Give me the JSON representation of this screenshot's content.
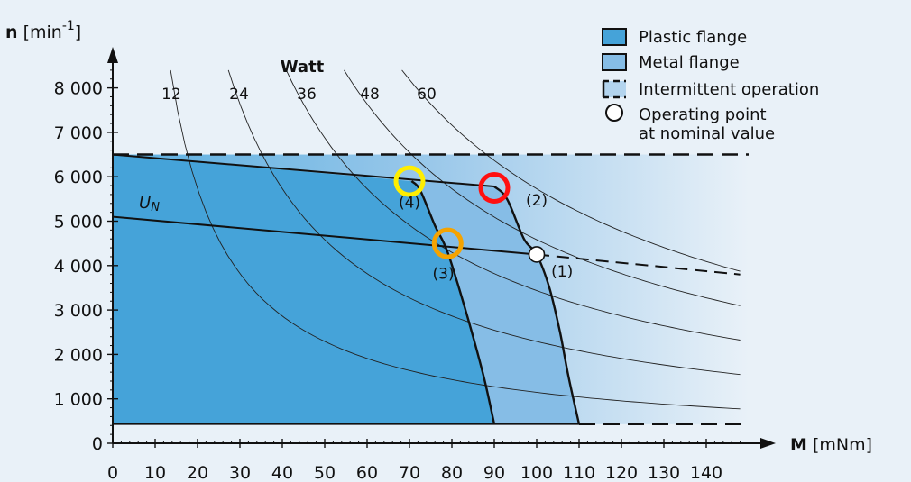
{
  "chart_data": {
    "type": "line",
    "x_axis": {
      "label_bold": "M",
      "label_rest": " [mNm]",
      "ticks": [
        0,
        10,
        20,
        30,
        40,
        50,
        60,
        70,
        80,
        90,
        100,
        110,
        120,
        130,
        140
      ],
      "range": [
        0,
        150
      ]
    },
    "y_axis": {
      "label_bold": "n",
      "label_rest": " [min",
      "label_sup": "-1",
      "label_close": "]",
      "ticks": [
        0,
        1000,
        2000,
        3000,
        4000,
        5000,
        6000,
        7000,
        8000
      ],
      "tick_labels": [
        "0",
        "1 000",
        "2 000",
        "3 000",
        "4 000",
        "5 000",
        "6 000",
        "7 000",
        "8 000"
      ],
      "range": [
        0,
        9000
      ]
    },
    "watt_heading": "Watt",
    "power_curves": [
      {
        "label": "12",
        "watts": 12
      },
      {
        "label": "24",
        "watts": 24
      },
      {
        "label": "36",
        "watts": 36
      },
      {
        "label": "48",
        "watts": 48
      },
      {
        "label": "60",
        "watts": 60
      }
    ],
    "speed_limit": 6500,
    "min_speed": 430,
    "plastic_region": [
      [
        0,
        6500
      ],
      [
        70.5,
        5900
      ],
      [
        72.5,
        5700
      ],
      [
        76,
        4900
      ],
      [
        79,
        4300
      ],
      [
        83.5,
        2900
      ],
      [
        87.5,
        1500
      ],
      [
        90,
        430
      ],
      [
        0,
        430
      ]
    ],
    "metal_region": [
      [
        70.5,
        5900
      ],
      [
        90,
        5780
      ],
      [
        93,
        5500
      ],
      [
        97,
        4600
      ],
      [
        100,
        4250
      ],
      [
        103,
        3500
      ],
      [
        105.5,
        2500
      ],
      [
        107.5,
        1500
      ],
      [
        110,
        430
      ],
      [
        90,
        430
      ],
      [
        87.5,
        1500
      ],
      [
        83.5,
        2900
      ],
      [
        79,
        4300
      ],
      [
        76,
        4900
      ],
      [
        72.5,
        5700
      ]
    ],
    "upper_speed_line": [
      [
        0,
        6500
      ],
      [
        90,
        5780
      ]
    ],
    "nominal_voltage_line": [
      [
        0,
        5100
      ],
      [
        100,
        4250
      ]
    ],
    "nominal_voltage_dashed": [
      [
        100,
        4250
      ],
      [
        148,
        3800
      ]
    ],
    "un_label": {
      "main": "U",
      "sub": "N"
    },
    "characteristics": [
      {
        "points": [
          [
            70.5,
            5900
          ],
          [
            72.5,
            5700
          ],
          [
            76,
            4900
          ],
          [
            79,
            4300
          ],
          [
            83.5,
            2900
          ],
          [
            87.5,
            1500
          ],
          [
            90,
            430
          ]
        ]
      },
      {
        "points": [
          [
            90,
            5780
          ],
          [
            93,
            5500
          ],
          [
            97,
            4600
          ],
          [
            100,
            4250
          ],
          [
            103,
            3500
          ],
          [
            105.5,
            2500
          ],
          [
            107.5,
            1500
          ],
          [
            110,
            430
          ]
        ]
      }
    ],
    "operating_point": {
      "x": 100,
      "y": 4250
    },
    "markers": [
      {
        "id": "(4)",
        "x": 70,
        "y": 5900,
        "color": "#ffee00",
        "label_x": 70,
        "label_y": 5300
      },
      {
        "id": "(2)",
        "x": 90,
        "y": 5750,
        "color": "#ff1010",
        "label_x": 100,
        "label_y": 5350
      },
      {
        "id": "(3)",
        "x": 79,
        "y": 4500,
        "color": "#f5a300",
        "label_x": 78,
        "label_y": 3700
      },
      {
        "id": "(1)",
        "x": 100,
        "y": 4250,
        "color": null,
        "label_x": 106,
        "label_y": 3750
      }
    ],
    "legend": [
      {
        "kind": "plastic",
        "label": "Plastic flange"
      },
      {
        "kind": "metal",
        "label": "Metal flange"
      },
      {
        "kind": "intermittent",
        "label": "Intermittent operation"
      },
      {
        "kind": "point",
        "label": "Operating point",
        "label2": "at nominal value"
      }
    ],
    "colors": {
      "plastic": "#45a3d9",
      "metal": "#86bde6",
      "background": "#e9f1f8",
      "ring_yellow": "#ffee00",
      "ring_red": "#ff1010",
      "ring_orange": "#f5a300"
    }
  }
}
